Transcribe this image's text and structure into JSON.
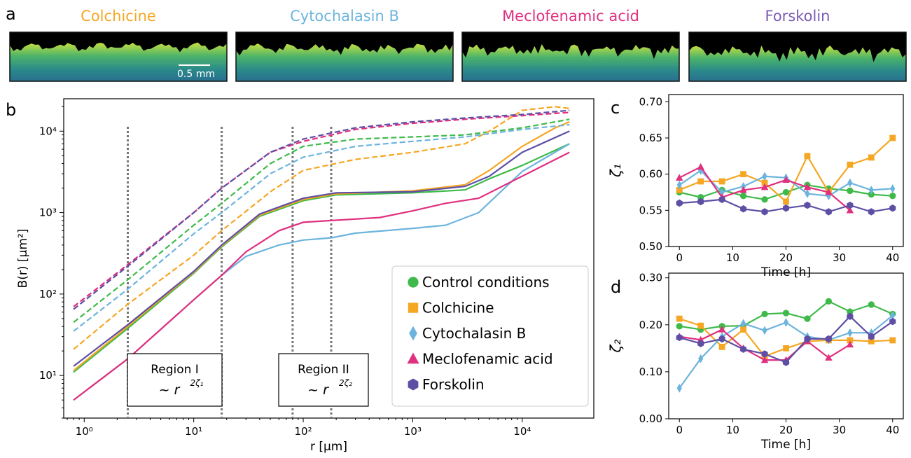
{
  "panel_letters": {
    "a": "a",
    "b": "b",
    "c": "c",
    "d": "d"
  },
  "colors": {
    "control": "#3fba4a",
    "colchicine": "#f5a623",
    "cytochalasin": "#6cb4dd",
    "meclofenamic": "#e0307f",
    "forskolin": "#5e4fa5"
  },
  "images": [
    {
      "title": "Colchicine",
      "color": "#f5a623"
    },
    {
      "title": "Cytochalasin B",
      "color": "#6cb4dd"
    },
    {
      "title": "Meclofenamic acid",
      "color": "#e0307f"
    },
    {
      "title": "Forskolin",
      "color": "#7a5bb5"
    }
  ],
  "scalebar_label": "0.5 mm",
  "chart_data": [
    {
      "type": "line",
      "panel": "b",
      "xlabel": "r [μm]",
      "ylabel": "B(r) [μm²]",
      "xscale": "log",
      "yscale": "log",
      "xlim": [
        0.65,
        45000
      ],
      "ylim": [
        3,
        25000
      ],
      "xticks": [
        1,
        10,
        100,
        1000,
        10000
      ],
      "xtick_labels": [
        "10⁰",
        "10¹",
        "10²",
        "10³",
        "10⁴"
      ],
      "yticks": [
        10,
        100,
        1000,
        10000
      ],
      "ytick_labels": [
        "10¹",
        "10²",
        "10³",
        "10⁴"
      ],
      "vlines": [
        2.5,
        18,
        80,
        180
      ],
      "regions": [
        {
          "label": "Region I",
          "formula": "~ r",
          "exponent": "2ζ₁"
        },
        {
          "label": "Region II",
          "formula": "~ r",
          "exponent": "2ζ₂"
        }
      ],
      "legend_position": "lower-right",
      "series": [
        {
          "name": "Control conditions",
          "key": "control",
          "marker": "circle",
          "solid": [
            [
              0.8,
              11
            ],
            [
              2.5,
              38
            ],
            [
              10,
              180
            ],
            [
              18,
              380
            ],
            [
              40,
              900
            ],
            [
              100,
              1400
            ],
            [
              200,
              1650
            ],
            [
              1000,
              1750
            ],
            [
              3000,
              1900
            ],
            [
              5000,
              2600
            ],
            [
              10000,
              3800
            ],
            [
              27000,
              7000
            ]
          ],
          "dashed": [
            [
              0.8,
              45
            ],
            [
              2.5,
              150
            ],
            [
              10,
              700
            ],
            [
              18,
              1300
            ],
            [
              50,
              4000
            ],
            [
              100,
              6500
            ],
            [
              300,
              8000
            ],
            [
              1000,
              8500
            ],
            [
              3000,
              9000
            ],
            [
              10000,
              11000
            ],
            [
              27000,
              14000
            ]
          ]
        },
        {
          "name": "Colchicine",
          "key": "colchicine",
          "marker": "square",
          "solid": [
            [
              0.8,
              11.5
            ],
            [
              2.5,
              40
            ],
            [
              10,
              185
            ],
            [
              18,
              390
            ],
            [
              40,
              930
            ],
            [
              100,
              1450
            ],
            [
              200,
              1700
            ],
            [
              1000,
              1850
            ],
            [
              3000,
              2200
            ],
            [
              5000,
              3300
            ],
            [
              10000,
              6500
            ],
            [
              20000,
              11000
            ],
            [
              27000,
              13000
            ]
          ],
          "dashed": [
            [
              0.8,
              21
            ],
            [
              2.5,
              75
            ],
            [
              10,
              300
            ],
            [
              18,
              600
            ],
            [
              50,
              1800
            ],
            [
              100,
              3300
            ],
            [
              300,
              4500
            ],
            [
              1000,
              5500
            ],
            [
              3000,
              7000
            ],
            [
              5000,
              10000
            ],
            [
              10000,
              18000
            ],
            [
              20000,
              20000
            ],
            [
              27000,
              19000
            ]
          ]
        },
        {
          "name": "Cytochalasin B",
          "key": "cytochalasin",
          "marker": "diamond",
          "solid": [
            [
              0.8,
              5
            ],
            [
              2.5,
              16
            ],
            [
              10,
              85
            ],
            [
              18,
              170
            ],
            [
              30,
              290
            ],
            [
              60,
              400
            ],
            [
              100,
              460
            ],
            [
              180,
              490
            ],
            [
              300,
              560
            ],
            [
              1000,
              640
            ],
            [
              2000,
              700
            ],
            [
              4000,
              1000
            ],
            [
              10000,
              3200
            ],
            [
              27000,
              7000
            ]
          ],
          "dashed": [
            [
              0.8,
              35
            ],
            [
              2.5,
              115
            ],
            [
              10,
              550
            ],
            [
              18,
              1000
            ],
            [
              50,
              3000
            ],
            [
              100,
              4800
            ],
            [
              300,
              6500
            ],
            [
              1000,
              7500
            ],
            [
              3000,
              8500
            ],
            [
              10000,
              10500
            ],
            [
              27000,
              12000
            ]
          ]
        },
        {
          "name": "Meclofenamic acid",
          "key": "meclofenamic",
          "marker": "triangle",
          "solid": [
            [
              0.8,
              5
            ],
            [
              2.5,
              16
            ],
            [
              10,
              85
            ],
            [
              18,
              170
            ],
            [
              30,
              330
            ],
            [
              60,
              600
            ],
            [
              100,
              760
            ],
            [
              180,
              800
            ],
            [
              500,
              870
            ],
            [
              1000,
              1050
            ],
            [
              2000,
              1300
            ],
            [
              4000,
              1500
            ],
            [
              10000,
              2800
            ],
            [
              27000,
              5500
            ]
          ],
          "dashed": [
            [
              0.8,
              70
            ],
            [
              2.5,
              230
            ],
            [
              10,
              1000
            ],
            [
              18,
              2000
            ],
            [
              50,
              5500
            ],
            [
              100,
              7500
            ],
            [
              300,
              10500
            ],
            [
              1000,
              12500
            ],
            [
              3000,
              14000
            ],
            [
              10000,
              15500
            ],
            [
              27000,
              17000
            ]
          ]
        },
        {
          "name": "Forskolin",
          "key": "forskolin",
          "marker": "hexagon",
          "solid": [
            [
              0.8,
              13
            ],
            [
              2.5,
              42
            ],
            [
              10,
              190
            ],
            [
              18,
              400
            ],
            [
              40,
              960
            ],
            [
              100,
              1500
            ],
            [
              200,
              1750
            ],
            [
              1000,
              1800
            ],
            [
              3000,
              2100
            ],
            [
              5000,
              2800
            ],
            [
              10000,
              5500
            ],
            [
              27000,
              10000
            ]
          ],
          "dashed": [
            [
              0.8,
              65
            ],
            [
              2.5,
              220
            ],
            [
              10,
              1000
            ],
            [
              18,
              2000
            ],
            [
              50,
              5500
            ],
            [
              100,
              8000
            ],
            [
              300,
              11000
            ],
            [
              1000,
              13000
            ],
            [
              3000,
              14500
            ],
            [
              10000,
              16000
            ],
            [
              27000,
              18000
            ]
          ]
        }
      ]
    },
    {
      "type": "line",
      "panel": "c",
      "xlabel": "Time [h]",
      "ylabel": "ζ₁",
      "xlim": [
        -2,
        42
      ],
      "ylim": [
        0.5,
        0.71
      ],
      "xticks": [
        0,
        10,
        20,
        30,
        40
      ],
      "yticks": [
        0.5,
        0.55,
        0.6,
        0.65,
        0.7
      ],
      "ytick_labels": [
        "0.50",
        "0.55",
        "0.60",
        "0.65",
        "0.70"
      ],
      "series": [
        {
          "key": "control",
          "marker": "circle",
          "x": [
            0,
            4,
            8,
            12,
            16,
            20,
            24,
            28,
            32,
            36,
            40
          ],
          "values": [
            0.575,
            0.568,
            0.578,
            0.57,
            0.565,
            0.575,
            0.585,
            0.58,
            0.577,
            0.572,
            0.57
          ]
        },
        {
          "key": "colchicine",
          "marker": "square",
          "x": [
            0,
            4,
            8,
            12,
            16,
            20,
            24,
            28,
            32,
            36,
            40
          ],
          "values": [
            0.578,
            0.59,
            0.59,
            0.6,
            0.588,
            0.562,
            0.625,
            0.575,
            0.613,
            0.623,
            0.65
          ]
        },
        {
          "key": "cytochalasin",
          "marker": "diamond",
          "x": [
            0,
            4,
            8,
            12,
            16,
            20,
            24,
            28,
            32,
            36,
            40
          ],
          "values": [
            0.585,
            0.605,
            0.575,
            0.583,
            0.597,
            0.595,
            0.573,
            0.57,
            0.588,
            0.578,
            0.58
          ]
        },
        {
          "key": "meclofenamic",
          "marker": "triangle",
          "x": [
            0,
            4,
            8,
            12,
            16,
            20,
            24,
            28,
            32
          ],
          "values": [
            0.595,
            0.61,
            0.568,
            0.578,
            0.582,
            0.592,
            0.582,
            0.575,
            0.55
          ]
        },
        {
          "key": "forskolin",
          "marker": "hexagon",
          "x": [
            0,
            4,
            8,
            12,
            16,
            20,
            24,
            28,
            32,
            36,
            40
          ],
          "values": [
            0.56,
            0.562,
            0.565,
            0.552,
            0.548,
            0.553,
            0.557,
            0.548,
            0.557,
            0.548,
            0.553
          ]
        }
      ]
    },
    {
      "type": "line",
      "panel": "d",
      "xlabel": "Time [h]",
      "ylabel": "ζ₂",
      "xlim": [
        -2,
        42
      ],
      "ylim": [
        0,
        0.31
      ],
      "xticks": [
        0,
        10,
        20,
        30,
        40
      ],
      "yticks": [
        0,
        0.1,
        0.2,
        0.3
      ],
      "ytick_labels": [
        "0.00",
        "0.10",
        "0.20",
        "0.30"
      ],
      "series": [
        {
          "key": "control",
          "marker": "circle",
          "x": [
            0,
            4,
            8,
            12,
            16,
            20,
            24,
            28,
            32,
            36,
            40
          ],
          "values": [
            0.197,
            0.19,
            0.197,
            0.198,
            0.223,
            0.225,
            0.213,
            0.25,
            0.228,
            0.243,
            0.223
          ]
        },
        {
          "key": "colchicine",
          "marker": "square",
          "x": [
            0,
            4,
            8,
            12,
            16,
            20,
            24,
            28,
            32,
            36,
            40
          ],
          "values": [
            0.213,
            0.198,
            0.153,
            0.19,
            0.133,
            0.15,
            0.165,
            0.167,
            0.167,
            0.165,
            0.167
          ]
        },
        {
          "key": "cytochalasin",
          "marker": "diamond",
          "x": [
            0,
            4,
            8,
            12,
            16,
            20,
            24,
            28,
            32,
            36,
            40
          ],
          "values": [
            0.065,
            0.128,
            0.175,
            0.203,
            0.188,
            0.205,
            0.175,
            0.168,
            0.183,
            0.183,
            0.22
          ]
        },
        {
          "key": "meclofenamic",
          "marker": "triangle",
          "x": [
            0,
            4,
            8,
            12,
            16,
            20,
            24,
            28,
            32
          ],
          "values": [
            0.175,
            0.168,
            0.19,
            0.15,
            0.125,
            0.125,
            0.165,
            0.13,
            0.158
          ]
        },
        {
          "key": "forskolin",
          "marker": "hexagon",
          "x": [
            0,
            4,
            8,
            12,
            16,
            20,
            24,
            28,
            32,
            36,
            40
          ],
          "values": [
            0.173,
            0.16,
            0.17,
            0.148,
            0.138,
            0.12,
            0.17,
            0.17,
            0.218,
            0.175,
            0.207
          ]
        }
      ]
    }
  ]
}
